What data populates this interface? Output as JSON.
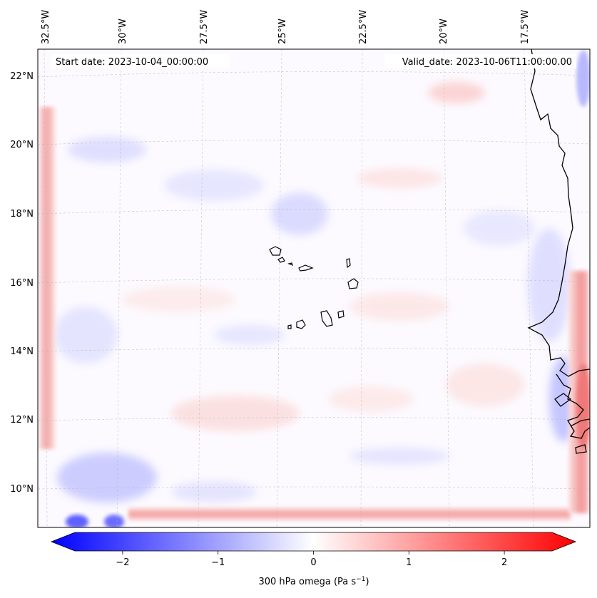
{
  "map": {
    "start_date": "Start date: 2023-10-04_00:00:00",
    "valid_date": "Valid_date: 2023-10-06T11:00:00.00",
    "lon_labels": [
      "32.5°W",
      "30°W",
      "27.5°W",
      "25°W",
      "22.5°W",
      "20°W",
      "17.5°W"
    ],
    "lat_labels": [
      "22°N",
      "20°N",
      "18°N",
      "16°N",
      "14°N",
      "12°N",
      "10°N"
    ],
    "field": "300 hPa omega",
    "colormap": [
      "#0000ff",
      "#ffffff",
      "#ff0000"
    ],
    "coastline_color": "#000000",
    "gridline_style": "dashed"
  },
  "colorbar": {
    "ticks": [
      "−2",
      "−1",
      "0",
      "1",
      "2"
    ],
    "tick_values": [
      -2,
      -1,
      0,
      1,
      2
    ],
    "range": [
      -2.5,
      2.5
    ],
    "extend": "both",
    "label_main": "300 hPa omega (Pa s",
    "label_exp": "−1",
    "label_close": ")"
  }
}
